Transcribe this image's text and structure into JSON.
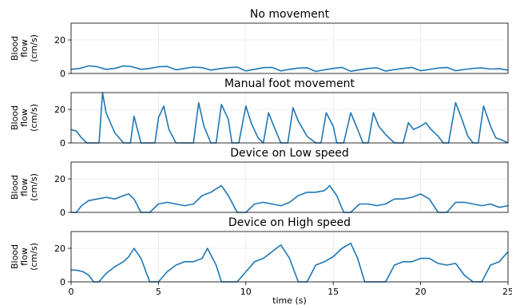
{
  "chart_data": [
    {
      "type": "line",
      "title": "No movement",
      "ylabel": "Blood\nflow\n(cm/s)",
      "xlim": [
        0,
        25
      ],
      "ylim": [
        0,
        30
      ],
      "yticks": [
        0,
        20
      ],
      "grid": true,
      "series": [
        {
          "x": [
            0,
            0.5,
            1,
            1.5,
            2,
            2.5,
            3,
            3.5,
            4,
            4.5,
            5,
            5.5,
            6,
            6.5,
            7,
            7.5,
            8,
            8.5,
            9,
            9.5,
            10,
            10.5,
            11,
            11.5,
            12,
            12.5,
            13,
            13.5,
            14,
            14.5,
            15,
            15.5,
            16,
            16.5,
            17,
            17.5,
            18,
            18.5,
            19,
            19.5,
            20,
            20.5,
            21,
            21.5,
            22,
            22.5,
            23,
            23.5,
            24,
            24.5,
            25
          ],
          "y": [
            2.5,
            3,
            4.5,
            4,
            2.5,
            3,
            4.5,
            4,
            2.5,
            3,
            4,
            4.2,
            2.2,
            3,
            3.8,
            3.5,
            2,
            2.8,
            3.5,
            3.8,
            1.5,
            2.5,
            3.5,
            3.6,
            1.5,
            2.5,
            3.2,
            3.4,
            1.2,
            2.2,
            3,
            3.6,
            1.3,
            2.2,
            3,
            3.4,
            1.4,
            2.3,
            3,
            3.6,
            1.6,
            2.4,
            3.2,
            3.6,
            1.6,
            2.4,
            3,
            3.3,
            2.6,
            2.8,
            2
          ]
        }
      ]
    },
    {
      "type": "line",
      "title": "Manual foot movement",
      "ylabel": "Blood\nflow\n(cm/s)",
      "xlim": [
        0,
        25
      ],
      "ylim": [
        0,
        30
      ],
      "yticks": [
        0,
        20
      ],
      "grid": true,
      "series": [
        {
          "x": [
            0,
            0.3,
            0.6,
            0.9,
            1.2,
            1.6,
            1.8,
            2,
            2.5,
            3,
            3.4,
            3.6,
            3.8,
            4,
            4.4,
            4.8,
            5,
            5.3,
            5.6,
            6,
            6.3,
            7,
            7.3,
            7.6,
            8,
            8.3,
            8.6,
            9,
            9.2,
            9.6,
            10,
            10.3,
            10.7,
            11,
            11.3,
            11.6,
            12,
            12.4,
            12.7,
            13,
            13.5,
            14,
            14.3,
            14.6,
            15,
            15.2,
            15.6,
            16,
            16.4,
            16.7,
            17,
            17.3,
            17.6,
            18,
            18.5,
            19,
            19.3,
            19.6,
            20,
            20.3,
            20.6,
            21,
            21.3,
            21.6,
            22,
            22.3,
            22.7,
            23,
            23.3,
            23.6,
            24,
            24.3,
            24.6,
            25
          ],
          "y": [
            8,
            7,
            3,
            0,
            0,
            0,
            30,
            18,
            6,
            0,
            0,
            16,
            8,
            0,
            0,
            0,
            15,
            22,
            8,
            0,
            0,
            0,
            24,
            10,
            0,
            0,
            23,
            14,
            0,
            0,
            22,
            12,
            3,
            0,
            18,
            10,
            0,
            0,
            21,
            13,
            4,
            0,
            0,
            18,
            10,
            0,
            0,
            18,
            8,
            0,
            0,
            18,
            10,
            5,
            0,
            0,
            12,
            8,
            10,
            12,
            8,
            4,
            0,
            0,
            24,
            16,
            4,
            0,
            0,
            22,
            10,
            3,
            2,
            0
          ]
        }
      ]
    },
    {
      "type": "line",
      "title": "Device on Low speed",
      "ylabel": "Blood\nflow\n(cm/s)",
      "xlim": [
        0,
        25
      ],
      "ylim": [
        0,
        30
      ],
      "yticks": [
        0,
        20
      ],
      "grid": true,
      "series": [
        {
          "x": [
            0,
            0.3,
            0.6,
            1,
            1.5,
            2,
            2.5,
            3,
            3.3,
            3.6,
            4,
            4.5,
            5,
            5.5,
            6,
            6.5,
            7,
            7.5,
            8,
            8.3,
            8.6,
            9,
            9.5,
            10,
            10.5,
            11,
            11.5,
            12,
            12.5,
            13,
            13.5,
            14,
            14.5,
            14.8,
            15.2,
            15.6,
            16,
            16.5,
            17,
            17.5,
            18,
            18.5,
            19,
            19.5,
            20,
            20.5,
            21,
            21.5,
            22,
            22.5,
            23,
            23.5,
            24,
            24.5,
            25
          ],
          "y": [
            0,
            0,
            4,
            7,
            8,
            9,
            8,
            10,
            11,
            8,
            0,
            0,
            5,
            6,
            5,
            4,
            5,
            10,
            12,
            14,
            16,
            10,
            0,
            0,
            5,
            6,
            5,
            4,
            6,
            10,
            12,
            12,
            13,
            16,
            10,
            0,
            0,
            5,
            5,
            4,
            5,
            8,
            8,
            9,
            11,
            8,
            0,
            0,
            6,
            6,
            5,
            4,
            5,
            3,
            4
          ]
        }
      ]
    },
    {
      "type": "line",
      "title": "Device on High speed",
      "ylabel": "Blood\nflow\n(cm/s)",
      "xlabel": "time (s)",
      "xlim": [
        0,
        25
      ],
      "ylim": [
        0,
        30
      ],
      "yticks": [
        0,
        20
      ],
      "xticks": [
        0,
        5,
        10,
        15,
        20,
        25
      ],
      "grid": true,
      "series": [
        {
          "x": [
            0,
            0.3,
            0.7,
            1,
            1.3,
            1.6,
            2,
            2.5,
            3,
            3.3,
            3.6,
            4,
            4.5,
            5,
            5.5,
            6,
            6.5,
            7,
            7.5,
            7.8,
            8,
            8.3,
            8.6,
            9,
            9.5,
            10,
            10.5,
            11,
            11.5,
            12,
            12.5,
            13,
            13.5,
            14,
            14.5,
            15,
            15.5,
            16,
            16.4,
            16.8,
            17,
            17.5,
            18,
            18.5,
            19,
            19.5,
            20,
            20.5,
            21,
            21.5,
            22,
            22.5,
            23,
            23.5,
            24,
            24.5,
            25
          ],
          "y": [
            7,
            7,
            6,
            4,
            0,
            0,
            5,
            9,
            12,
            15,
            20,
            14,
            0,
            0,
            6,
            10,
            12,
            12,
            14,
            20,
            16,
            10,
            0,
            0,
            0,
            6,
            12,
            14,
            18,
            22,
            14,
            0,
            0,
            10,
            12,
            15,
            20,
            23,
            14,
            0,
            0,
            0,
            0,
            10,
            12,
            12,
            14,
            14,
            11,
            10,
            11,
            4,
            0,
            0,
            10,
            12,
            18
          ]
        }
      ]
    }
  ]
}
